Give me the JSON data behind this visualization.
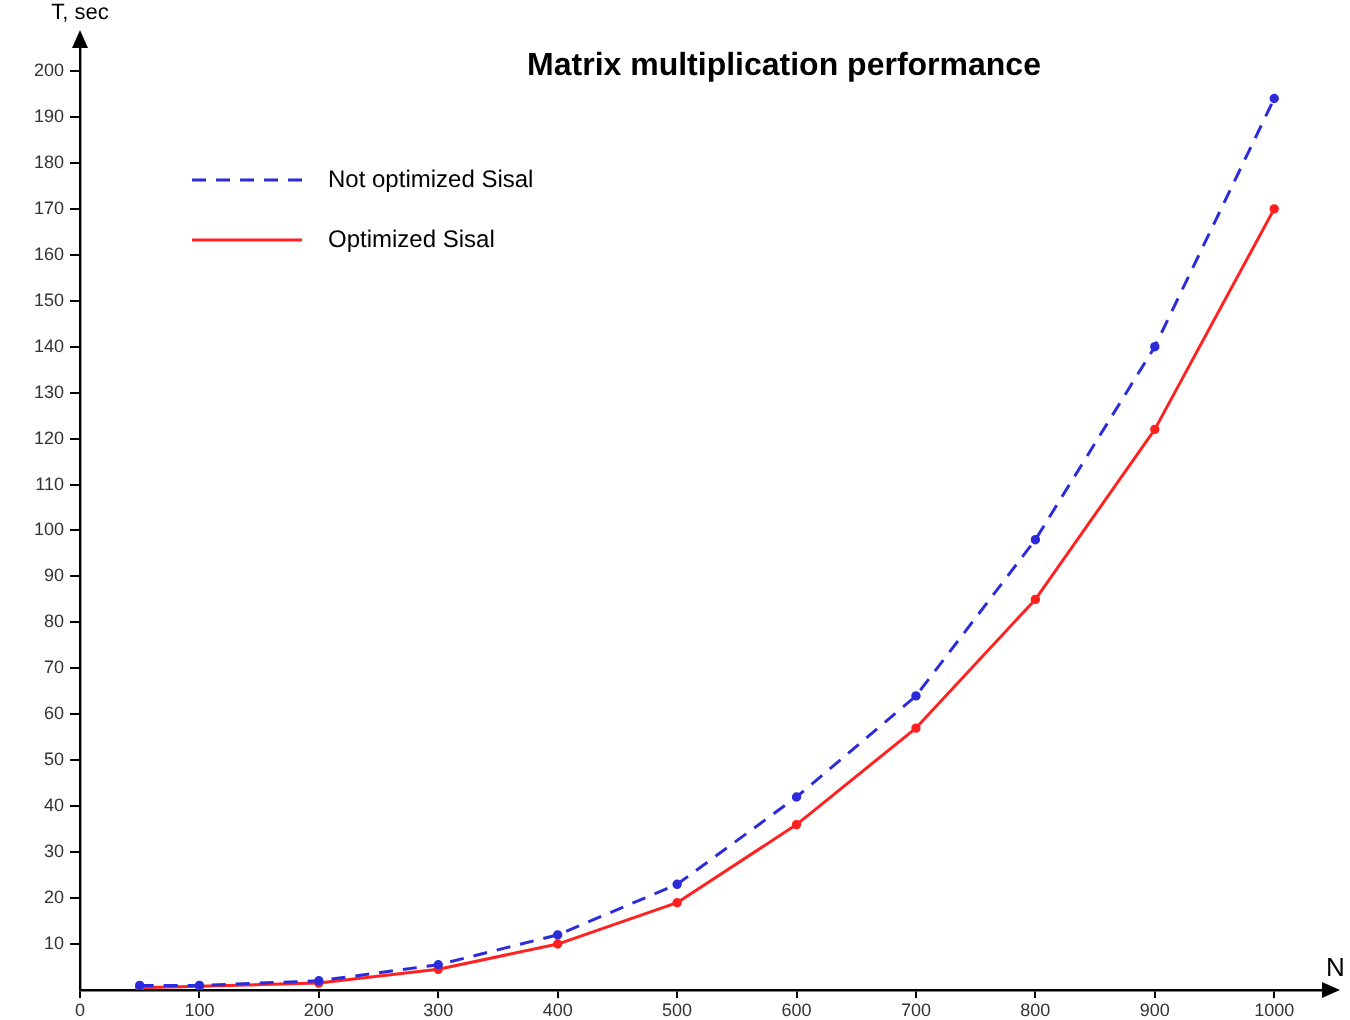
{
  "chart_data": {
    "type": "line",
    "title": "Matrix multiplication performance",
    "xlabel": "N",
    "ylabel": "T, sec",
    "x": [
      50,
      100,
      200,
      300,
      400,
      500,
      600,
      700,
      800,
      900,
      1000
    ],
    "series": [
      {
        "name": "Not optimized Sisal",
        "color": "#2b2bd9",
        "line_style": "dashed",
        "values": [
          1,
          1,
          2,
          5.5,
          12,
          23,
          42,
          64,
          98,
          140,
          194
        ]
      },
      {
        "name": "Optimized Sisal",
        "color": "#ff2020",
        "line_style": "solid",
        "values": [
          0.5,
          0.8,
          1.5,
          4.5,
          10,
          19,
          36,
          57,
          85,
          122,
          170
        ]
      }
    ],
    "xlim": [
      0,
      1040
    ],
    "ylim": [
      0,
      205
    ],
    "xticks": [
      0,
      100,
      200,
      300,
      400,
      500,
      600,
      700,
      800,
      900,
      1000
    ],
    "yticks": [
      10,
      20,
      30,
      40,
      50,
      60,
      70,
      80,
      90,
      100,
      110,
      120,
      130,
      140,
      150,
      160,
      170,
      180,
      190,
      200
    ],
    "grid": false,
    "legend": "top left",
    "marker": "circle"
  }
}
